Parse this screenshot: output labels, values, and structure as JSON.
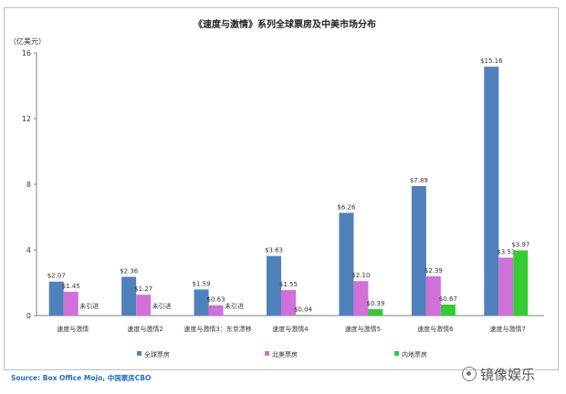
{
  "chart_data": {
    "type": "bar",
    "title": "《速度与激情》系列全球票房及中美市场分布",
    "ylabel": "（亿美元）",
    "ylim": [
      0,
      16
    ],
    "yticks": [
      0,
      4,
      8,
      12,
      16
    ],
    "grid": false,
    "legend_position": "bottom",
    "categories": [
      "速度与激情",
      "速度与激情2",
      "速度与激情3：东京漂移",
      "速度与激情4",
      "速度与激情5",
      "速度与激情6",
      "速度与激情7"
    ],
    "series": [
      {
        "name": "全球票房",
        "color": "#4f81bd",
        "values": [
          2.07,
          2.36,
          1.59,
          3.63,
          6.26,
          7.89,
          15.16
        ],
        "labels": [
          "$2.07",
          "$2.36",
          "$1.59",
          "$3.63",
          "$6.26",
          "$7.89",
          "$15.16"
        ]
      },
      {
        "name": "北美票房",
        "color": "#d070d8",
        "values": [
          1.45,
          1.27,
          0.63,
          1.55,
          2.1,
          2.39,
          3.53
        ],
        "labels": [
          "$1.45",
          "$1.27",
          "$0.63",
          "$1.55",
          "$2.10",
          "$2.39",
          "$3.53"
        ]
      },
      {
        "name": "内地票房",
        "color": "#33cc33",
        "values": [
          null,
          null,
          null,
          0.04,
          0.39,
          0.67,
          3.97
        ],
        "labels": [
          "未引进",
          "未引进",
          "未引进",
          "$0.04",
          "$0.39",
          "$0.67",
          "$3.97"
        ]
      }
    ],
    "source": "Source: Box Office Mojo, 中国票房CBO"
  },
  "watermark": "镜像娱乐",
  "colors": {
    "source_text": "#1f6fc1",
    "axis": "#808080",
    "label": "#333333"
  }
}
